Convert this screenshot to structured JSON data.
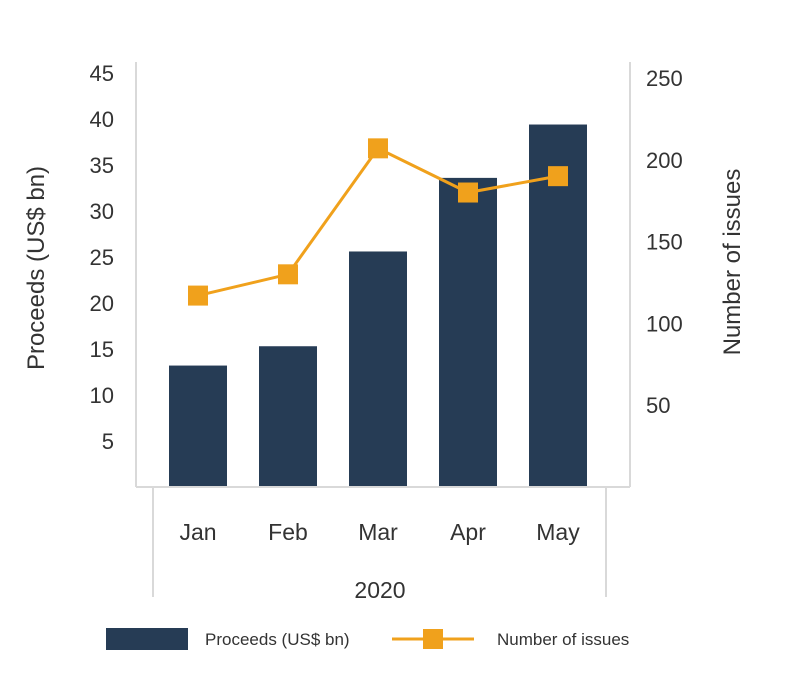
{
  "chart_data": {
    "type": "bar+line",
    "categories": [
      "Jan",
      "Feb",
      "Mar",
      "Apr",
      "May"
    ],
    "group_label": "2020",
    "series": [
      {
        "name": "Proceeds (US$ bn)",
        "type": "bar",
        "axis": "left",
        "values": [
          13.2,
          15.3,
          25.6,
          33.6,
          39.4
        ]
      },
      {
        "name": "Number of issues",
        "type": "line",
        "axis": "right",
        "values": [
          117,
          130,
          207,
          180,
          190
        ]
      }
    ],
    "y_left": {
      "label": "Proceeds (US$ bn)",
      "ylim": [
        0,
        45
      ],
      "ticks": [
        5,
        10,
        15,
        20,
        25,
        30,
        35,
        40,
        45
      ]
    },
    "y_right": {
      "label": "Number of issues",
      "ylim": [
        0,
        250
      ],
      "ticks": [
        50,
        100,
        150,
        200,
        250
      ]
    },
    "legend_position": "bottom",
    "grid": false,
    "colors": {
      "bar": "#263c55",
      "line": "#f0a11c",
      "axis": "#d9d9d9",
      "text": "#333333"
    }
  }
}
